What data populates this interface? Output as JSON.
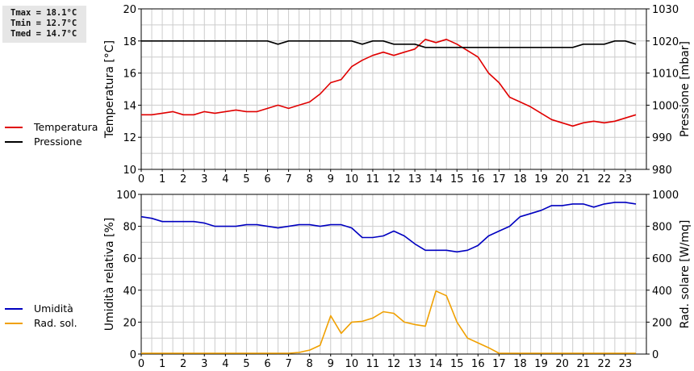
{
  "stats": {
    "tmax": "Tmax = 18.1°C",
    "tmin": "Tmin = 12.7°C",
    "tmed": "Tmed = 14.7°C"
  },
  "chart_data": [
    {
      "type": "line",
      "x_ticks": [
        "0",
        "1",
        "2",
        "3",
        "4",
        "5",
        "6",
        "7",
        "8",
        "9",
        "10",
        "11",
        "12",
        "13",
        "14",
        "15",
        "16",
        "17",
        "18",
        "19",
        "20",
        "21",
        "22",
        "23"
      ],
      "xlim": [
        0,
        24
      ],
      "ylabel": "Temperatura [°C]",
      "ylim": [
        10,
        20
      ],
      "y_ticks": [
        "10",
        "12",
        "14",
        "16",
        "18",
        "20"
      ],
      "y2label": "Pressione [mbar]",
      "y2lim": [
        980,
        1030
      ],
      "y2_ticks": [
        "980",
        "990",
        "1000",
        "1010",
        "1020",
        "1030"
      ],
      "grid": true,
      "legend_position": "left-outside",
      "series": [
        {
          "name": "Temperatura",
          "color": "#e00000",
          "axis": "left",
          "x": [
            0,
            0.5,
            1,
            1.5,
            2,
            2.5,
            3,
            3.5,
            4,
            4.5,
            5,
            5.5,
            6,
            6.5,
            7,
            7.5,
            8,
            8.5,
            9,
            9.5,
            10,
            10.5,
            11,
            11.5,
            12,
            12.5,
            13,
            13.5,
            14,
            14.5,
            15,
            15.5,
            16,
            16.5,
            17,
            17.5,
            18,
            18.5,
            19,
            19.5,
            20,
            20.5,
            21,
            21.5,
            22,
            22.5,
            23,
            23.5
          ],
          "values": [
            13.4,
            13.4,
            13.5,
            13.6,
            13.4,
            13.4,
            13.6,
            13.5,
            13.6,
            13.7,
            13.6,
            13.6,
            13.8,
            14.0,
            13.8,
            14.0,
            14.2,
            14.7,
            15.4,
            15.6,
            16.4,
            16.8,
            17.1,
            17.3,
            17.1,
            17.3,
            17.5,
            18.1,
            17.9,
            18.1,
            17.8,
            17.4,
            17.0,
            16.0,
            15.4,
            14.5,
            14.2,
            13.9,
            13.5,
            13.1,
            12.9,
            12.7,
            12.9,
            13.0,
            12.9,
            13.0,
            13.2,
            13.4
          ]
        },
        {
          "name": "Pressione",
          "color": "#000000",
          "axis": "right",
          "x": [
            0,
            1,
            2,
            3,
            4,
            5,
            6,
            6.5,
            7,
            8,
            9,
            10,
            10.5,
            11,
            11.5,
            12,
            13,
            13.5,
            14,
            15,
            16,
            17,
            18,
            19,
            20,
            20.5,
            21,
            22,
            22.5,
            23,
            23.5
          ],
          "values": [
            1020,
            1020,
            1020,
            1020,
            1020,
            1020,
            1020,
            1019,
            1020,
            1020,
            1020,
            1020,
            1019,
            1020,
            1020,
            1019,
            1019,
            1018,
            1018,
            1018,
            1018,
            1018,
            1018,
            1018,
            1018,
            1018,
            1019,
            1019,
            1020,
            1020,
            1019
          ]
        }
      ]
    },
    {
      "type": "line",
      "x_ticks": [
        "0",
        "1",
        "2",
        "3",
        "4",
        "5",
        "6",
        "7",
        "8",
        "9",
        "10",
        "11",
        "12",
        "13",
        "14",
        "15",
        "16",
        "17",
        "18",
        "19",
        "20",
        "21",
        "22",
        "23"
      ],
      "xlim": [
        0,
        24
      ],
      "ylabel": "Umidità relativa [%]",
      "ylim": [
        0,
        100
      ],
      "y_ticks": [
        "0",
        "20",
        "40",
        "60",
        "80",
        "100"
      ],
      "y2label": "Rad. solare [W/mq]",
      "y2lim": [
        0,
        1000
      ],
      "y2_ticks": [
        "0",
        "200",
        "400",
        "600",
        "800",
        "1000"
      ],
      "grid": true,
      "legend_position": "left-outside",
      "series": [
        {
          "name": "Umidità",
          "color": "#0000c0",
          "axis": "left",
          "x": [
            0,
            0.5,
            1,
            1.5,
            2,
            2.5,
            3,
            3.5,
            4,
            4.5,
            5,
            5.5,
            6,
            6.5,
            7,
            7.5,
            8,
            8.5,
            9,
            9.5,
            10,
            10.5,
            11,
            11.5,
            12,
            12.5,
            13,
            13.5,
            14,
            14.5,
            15,
            15.5,
            16,
            16.5,
            17,
            17.5,
            18,
            18.5,
            19,
            19.5,
            20,
            20.5,
            21,
            21.5,
            22,
            22.5,
            23,
            23.5
          ],
          "values": [
            86,
            85,
            83,
            83,
            83,
            83,
            82,
            80,
            80,
            80,
            81,
            81,
            80,
            79,
            80,
            81,
            81,
            80,
            81,
            81,
            79,
            73,
            73,
            74,
            77,
            74,
            69,
            65,
            65,
            65,
            64,
            65,
            68,
            74,
            77,
            80,
            86,
            88,
            90,
            93,
            93,
            94,
            94,
            92,
            94,
            95,
            95,
            94
          ]
        },
        {
          "name": "Rad. sol.",
          "color": "#f0a000",
          "axis": "right",
          "x": [
            0,
            1,
            2,
            3,
            4,
            5,
            6,
            6.5,
            7,
            7.5,
            8,
            8.5,
            9,
            9.5,
            10,
            10.5,
            11,
            11.5,
            12,
            12.5,
            13,
            13.5,
            14,
            14.5,
            15,
            15.5,
            16,
            16.5,
            17,
            18,
            19,
            20,
            21,
            22,
            23,
            23.5
          ],
          "values": [
            5,
            5,
            5,
            5,
            5,
            5,
            5,
            5,
            5,
            10,
            25,
            55,
            240,
            130,
            200,
            205,
            225,
            265,
            255,
            200,
            185,
            175,
            395,
            365,
            200,
            100,
            70,
            40,
            5,
            5,
            5,
            5,
            5,
            5,
            5,
            5
          ]
        }
      ]
    }
  ]
}
